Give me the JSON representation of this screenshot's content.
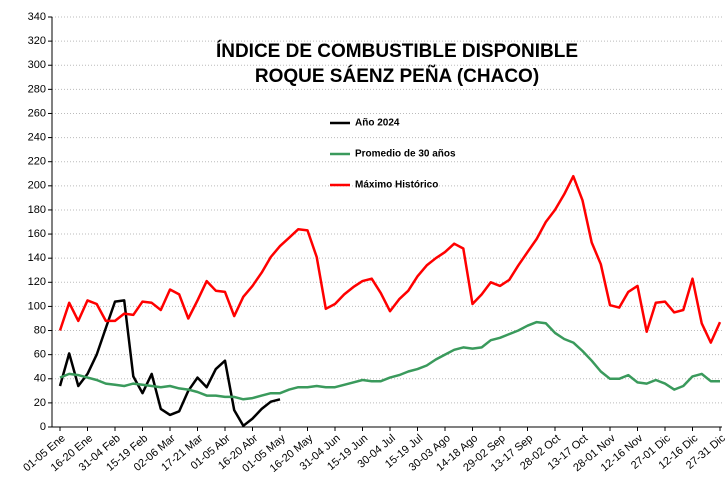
{
  "chart_data": {
    "type": "line",
    "title": [
      "ÍNDICE DE COMBUSTIBLE DISPONIBLE",
      "ROQUE SÁENZ PEÑA (CHACO)"
    ],
    "categories": [
      "01-05 Ene",
      null,
      null,
      "16-20 Ene",
      null,
      null,
      "31-04 Feb",
      null,
      null,
      "15-19 Feb",
      null,
      null,
      "02-06 Mar",
      null,
      null,
      "17-21 Mar",
      null,
      null,
      "01-05 Abr",
      null,
      null,
      "16-20 Abr",
      null,
      null,
      "01-05 May",
      null,
      null,
      "16-20 May",
      null,
      null,
      "31-04 Jun",
      null,
      null,
      "15-19 Jun",
      null,
      null,
      "30-04 Jul",
      null,
      null,
      "15-19 Jul",
      null,
      null,
      "30-03 Ago",
      null,
      null,
      "14-18 Ago",
      null,
      null,
      "29-02 Sep",
      null,
      null,
      "13-17 Sep",
      null,
      null,
      "28-02 Oct",
      null,
      null,
      "13-17 Oct",
      null,
      null,
      "28-01 Nov",
      null,
      null,
      "12-16 Nov",
      null,
      null,
      "27-01 Dic",
      null,
      null,
      "12-16 Dic",
      null,
      null,
      "27-31 Dic"
    ],
    "series": [
      {
        "name": "Año 2024",
        "color": "#000000",
        "values": [
          34,
          61,
          34,
          44,
          60,
          82,
          104,
          105,
          42,
          28,
          44,
          15,
          10,
          13,
          30,
          41,
          33,
          48,
          55,
          14,
          1,
          7,
          15,
          21,
          23,
          null,
          null,
          null,
          null,
          null,
          null,
          null,
          null,
          null,
          null,
          null,
          null,
          null,
          null,
          null,
          null,
          null,
          null,
          null,
          null,
          null,
          null,
          null,
          null,
          null,
          null,
          null,
          null,
          null,
          null,
          null,
          null,
          null,
          null,
          null,
          null,
          null,
          null,
          null,
          null,
          null,
          null,
          null,
          null,
          null,
          null,
          null,
          null
        ]
      },
      {
        "name": "Promedio de 30 años",
        "color": "#3a9a5c",
        "values": [
          41,
          44,
          43,
          41,
          39,
          36,
          35,
          34,
          36,
          35,
          34,
          33,
          34,
          32,
          31,
          29,
          26,
          26,
          25,
          25,
          23,
          24,
          26,
          28,
          28,
          31,
          33,
          33,
          34,
          33,
          33,
          35,
          37,
          39,
          38,
          38,
          41,
          43,
          46,
          48,
          51,
          56,
          60,
          64,
          66,
          65,
          66,
          72,
          74,
          77,
          80,
          84,
          87,
          86,
          78,
          73,
          70,
          63,
          55,
          46,
          40,
          40,
          43,
          37,
          36,
          39,
          36,
          31,
          34,
          42,
          44,
          38,
          38
        ]
      },
      {
        "name": "Máximo Histórico",
        "color": "#ff0000",
        "values": [
          80,
          103,
          88,
          105,
          102,
          88,
          88,
          94,
          93,
          104,
          103,
          97,
          114,
          110,
          90,
          105,
          121,
          113,
          112,
          92,
          108,
          117,
          128,
          141,
          150,
          157,
          164,
          163,
          141,
          98,
          102,
          110,
          116,
          121,
          123,
          111,
          96,
          106,
          113,
          125,
          134,
          140,
          145,
          152,
          148,
          102,
          110,
          120,
          117,
          122,
          134,
          145,
          156,
          170,
          180,
          193,
          208,
          188,
          153,
          135,
          101,
          99,
          112,
          117,
          79,
          103,
          104,
          95,
          97,
          123,
          86,
          70,
          87
        ]
      }
    ],
    "ylim": [
      0,
      340
    ],
    "yticks": [
      0,
      20,
      40,
      60,
      80,
      100,
      120,
      140,
      160,
      180,
      200,
      220,
      240,
      260,
      280,
      300,
      320,
      340
    ],
    "grid": true
  }
}
